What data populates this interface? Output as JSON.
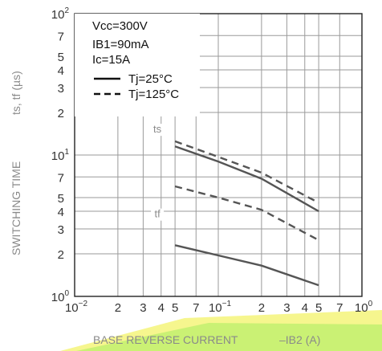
{
  "chart_data": {
    "type": "line",
    "xlabel": "BASE REVERSE CURRENT",
    "xlabel_symbol": "–IB2 (A)",
    "ylabel": "SWITCHING TIME",
    "ylabel_symbol": "ts, tf (µs)",
    "x_scale": "log",
    "y_scale": "log",
    "xlim": [
      0.01,
      1
    ],
    "ylim": [
      1,
      100
    ],
    "grid": true,
    "x_ticks": [
      {
        "base": "10",
        "exp": "−2"
      },
      {
        "text": "2"
      },
      {
        "text": "3"
      },
      {
        "text": "4"
      },
      {
        "text": "5"
      },
      {
        "text": "7"
      },
      {
        "base": "10",
        "exp": "−1"
      },
      {
        "text": "2"
      },
      {
        "text": "3"
      },
      {
        "text": "4"
      },
      {
        "text": "5"
      },
      {
        "text": "7"
      },
      {
        "base": "10",
        "exp": "0"
      }
    ],
    "y_ticks": [
      {
        "base": "10",
        "exp": "0"
      },
      {
        "text": "2"
      },
      {
        "text": "3"
      },
      {
        "text": "4"
      },
      {
        "text": "5"
      },
      {
        "text": "7"
      },
      {
        "base": "10",
        "exp": "1"
      },
      {
        "text": "2"
      },
      {
        "text": "3"
      },
      {
        "text": "4"
      },
      {
        "text": "5"
      },
      {
        "text": "7"
      },
      {
        "base": "10",
        "exp": "2"
      }
    ],
    "conditions": [
      "Vcc=300V",
      "IB1=90mA",
      "Ic=15A"
    ],
    "legend": [
      {
        "label": "Tj=25°C",
        "style": "solid"
      },
      {
        "label": "Tj=125°C",
        "style": "dashed"
      }
    ],
    "series": [
      {
        "label": "ts",
        "style": "solid",
        "x": [
          0.05,
          0.1,
          0.2,
          0.5
        ],
        "y": [
          11.5,
          9.0,
          6.8,
          4.0
        ]
      },
      {
        "label": "ts",
        "style": "dashed",
        "x": [
          0.05,
          0.1,
          0.2,
          0.5
        ],
        "y": [
          12.5,
          9.7,
          7.5,
          4.6
        ]
      },
      {
        "label": "tf",
        "style": "dashed",
        "x": [
          0.05,
          0.1,
          0.2,
          0.5
        ],
        "y": [
          6.0,
          5.0,
          4.1,
          2.5
        ]
      },
      {
        "label": "tf",
        "style": "solid",
        "x": [
          0.05,
          0.1,
          0.2,
          0.5
        ],
        "y": [
          2.3,
          1.95,
          1.65,
          1.2
        ]
      }
    ],
    "colors": {
      "axis": "#222222",
      "grid": "#9a9a9a",
      "series": "#555555",
      "labels": "#8a8a8a"
    }
  }
}
